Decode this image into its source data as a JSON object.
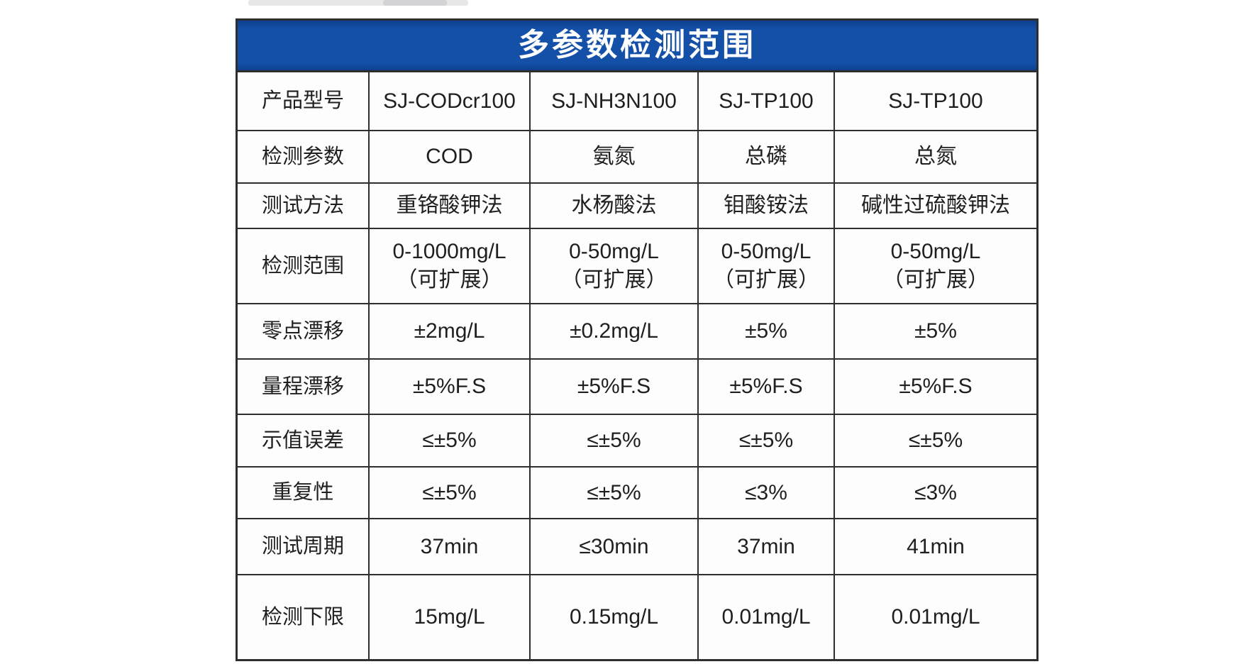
{
  "table": {
    "title": "多参数检测范围",
    "colors": {
      "header_bg": "#1450a8",
      "header_text": "#ffffff",
      "border": "#2e2e2e",
      "cell_bg": "#fdfdfd",
      "text": "#1f1f1f"
    },
    "rows": [
      {
        "label": "产品型号",
        "values": [
          "SJ-CODcr100",
          "SJ-NH3N100",
          "SJ-TP100",
          "SJ-TP100"
        ]
      },
      {
        "label": "检测参数",
        "values": [
          "COD",
          "氨氮",
          "总磷",
          "总氮"
        ]
      },
      {
        "label": "测试方法",
        "values": [
          "重铬酸钾法",
          "水杨酸法",
          "钼酸铵法",
          "碱性过硫酸钾法"
        ]
      },
      {
        "label": "检测范围",
        "values": [
          "0-1000mg/L\n（可扩展）",
          "0-50mg/L\n（可扩展）",
          "0-50mg/L\n（可扩展）",
          "0-50mg/L\n（可扩展）"
        ]
      },
      {
        "label": "零点漂移",
        "values": [
          "±2mg/L",
          "±0.2mg/L",
          "±5%",
          "±5%"
        ]
      },
      {
        "label": "量程漂移",
        "values": [
          "±5%F.S",
          "±5%F.S",
          "±5%F.S",
          "±5%F.S"
        ]
      },
      {
        "label": "示值误差",
        "values": [
          "≤±5%",
          "≤±5%",
          "≤±5%",
          "≤±5%"
        ]
      },
      {
        "label": "重复性",
        "values": [
          "≤±5%",
          "≤±5%",
          "≤3%",
          "≤3%"
        ]
      },
      {
        "label": "测试周期",
        "values": [
          "37min",
          "≤30min",
          "37min",
          "41min"
        ]
      },
      {
        "label": "检测下限",
        "values": [
          "15mg/L",
          "0.15mg/L",
          "0.01mg/L",
          "0.01mg/L"
        ]
      }
    ]
  }
}
